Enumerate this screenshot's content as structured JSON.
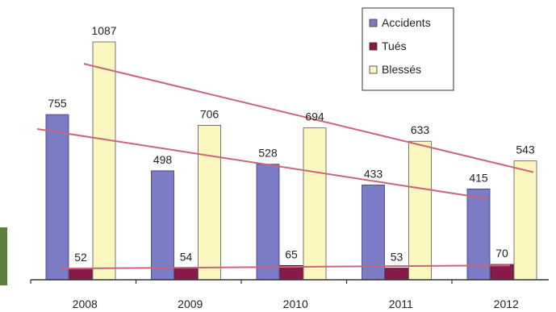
{
  "chart_data": {
    "type": "bar",
    "categories": [
      "2008",
      "2009",
      "2010",
      "2011",
      "2012"
    ],
    "series": [
      {
        "name": "Accidents",
        "color": "#7b7bc6",
        "values": [
          755,
          498,
          528,
          433,
          415
        ]
      },
      {
        "name": "Tués",
        "color": "#8a1a4a",
        "values": [
          52,
          54,
          65,
          53,
          70
        ]
      },
      {
        "name": "Blessés",
        "color": "#fbf7bf",
        "values": [
          1087,
          706,
          694,
          633,
          543
        ]
      }
    ],
    "trendlines": [
      {
        "series": "Accidents",
        "color": "#c8667a"
      },
      {
        "series": "Tués",
        "color": "#c8667a"
      },
      {
        "series": "Blessés",
        "color": "#c8667a"
      }
    ],
    "ylim": [
      0,
      1150
    ],
    "legend_position": "top-right",
    "grid": false
  }
}
